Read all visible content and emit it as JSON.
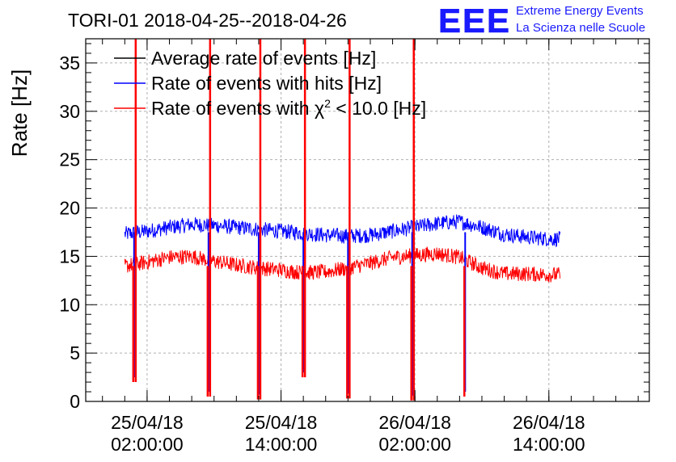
{
  "header": {
    "title": "TORI-01 2018-04-25--2018-04-26",
    "logo_text": "EEE",
    "org_line1": "Extreme Energy Events",
    "org_line2": "La Scienza nelle Scuole"
  },
  "colors": {
    "average": "#000000",
    "hits": "#0000ff",
    "chi2": "#ff0000",
    "logo": "#1a1aff",
    "grid": "#b0b0b0"
  },
  "chart_data": {
    "type": "line",
    "title": "TORI-01 2018-04-25--2018-04-26",
    "xlabel": "",
    "ylabel": "Rate [Hz]",
    "xlim": [
      "2018-04-24 20:30",
      "2018-04-26 23:00"
    ],
    "ylim": [
      0,
      37.5
    ],
    "yticks": [
      0,
      5,
      10,
      15,
      20,
      25,
      30,
      35
    ],
    "xticks": [
      {
        "date": "25/04/18",
        "time": "02:00:00",
        "x": "2018-04-25 02:00"
      },
      {
        "date": "25/04/18",
        "time": "14:00:00",
        "x": "2018-04-25 14:00"
      },
      {
        "date": "26/04/18",
        "time": "02:00:00",
        "x": "2018-04-26 02:00"
      },
      {
        "date": "26/04/18",
        "time": "14:00:00",
        "x": "2018-04-26 14:00"
      }
    ],
    "grid": true,
    "legend_position": "top-left",
    "legend": [
      {
        "label_main": "Average rate of events [Hz]",
        "label_sup": "",
        "label_tail": ""
      },
      {
        "label_main": "Rate of events with hits [Hz]",
        "label_sup": "",
        "label_tail": ""
      },
      {
        "label_main": "Rate of events with χ",
        "label_sup": "2",
        "label_tail": " < 10.0 [Hz]"
      }
    ],
    "series": [
      {
        "name": "Rate of events with hits [Hz]",
        "color": "#0000ff",
        "x": [
          "2018-04-25 00:00",
          "2018-04-25 02:00",
          "2018-04-25 04:00",
          "2018-04-25 06:00",
          "2018-04-25 08:00",
          "2018-04-25 10:00",
          "2018-04-25 12:00",
          "2018-04-25 14:00",
          "2018-04-25 16:00",
          "2018-04-25 18:00",
          "2018-04-25 20:00",
          "2018-04-25 22:00",
          "2018-04-26 00:00",
          "2018-04-26 02:00",
          "2018-04-26 04:00",
          "2018-04-26 06:00",
          "2018-04-26 08:00",
          "2018-04-26 10:00",
          "2018-04-26 12:00",
          "2018-04-26 14:00",
          "2018-04-26 15:00"
        ],
        "y": [
          17.3,
          17.6,
          18.0,
          18.3,
          18.2,
          18.0,
          17.8,
          17.6,
          17.4,
          17.2,
          17.1,
          17.2,
          17.6,
          18.0,
          18.4,
          18.6,
          18.0,
          17.3,
          17.0,
          16.8,
          16.8
        ]
      },
      {
        "name": "Rate of events with χ2 < 10.0 [Hz]",
        "color": "#ff0000",
        "x": [
          "2018-04-25 00:00",
          "2018-04-25 02:00",
          "2018-04-25 04:00",
          "2018-04-25 06:00",
          "2018-04-25 08:00",
          "2018-04-25 10:00",
          "2018-04-25 12:00",
          "2018-04-25 14:00",
          "2018-04-25 16:00",
          "2018-04-25 18:00",
          "2018-04-25 20:00",
          "2018-04-25 22:00",
          "2018-04-26 00:00",
          "2018-04-26 02:00",
          "2018-04-26 04:00",
          "2018-04-26 06:00",
          "2018-04-26 08:00",
          "2018-04-26 10:00",
          "2018-04-26 12:00",
          "2018-04-26 14:00",
          "2018-04-26 15:00"
        ],
        "y": [
          14.0,
          14.4,
          14.9,
          15.0,
          14.5,
          14.1,
          13.8,
          13.6,
          13.3,
          13.4,
          13.8,
          14.3,
          14.9,
          15.1,
          15.3,
          14.9,
          13.8,
          13.2,
          13.2,
          13.1,
          13.1
        ]
      }
    ],
    "dips": [
      {
        "x": "2018-04-25 00:50",
        "min": 2.0,
        "spike_to": 37.5
      },
      {
        "x": "2018-04-25 07:30",
        "min": 0.5,
        "spike_to": 37.5
      },
      {
        "x": "2018-04-25 12:00",
        "min": 0.2,
        "spike_to": 37.5
      },
      {
        "x": "2018-04-25 16:00",
        "min": 2.5,
        "spike_to": 37.5
      },
      {
        "x": "2018-04-25 20:00",
        "min": 0.3,
        "spike_to": 37.5
      },
      {
        "x": "2018-04-26 01:45",
        "min": 0.1,
        "spike_to": 37.5
      },
      {
        "x": "2018-04-26 06:30",
        "min": 0.5,
        "spike_to": 0
      }
    ]
  }
}
